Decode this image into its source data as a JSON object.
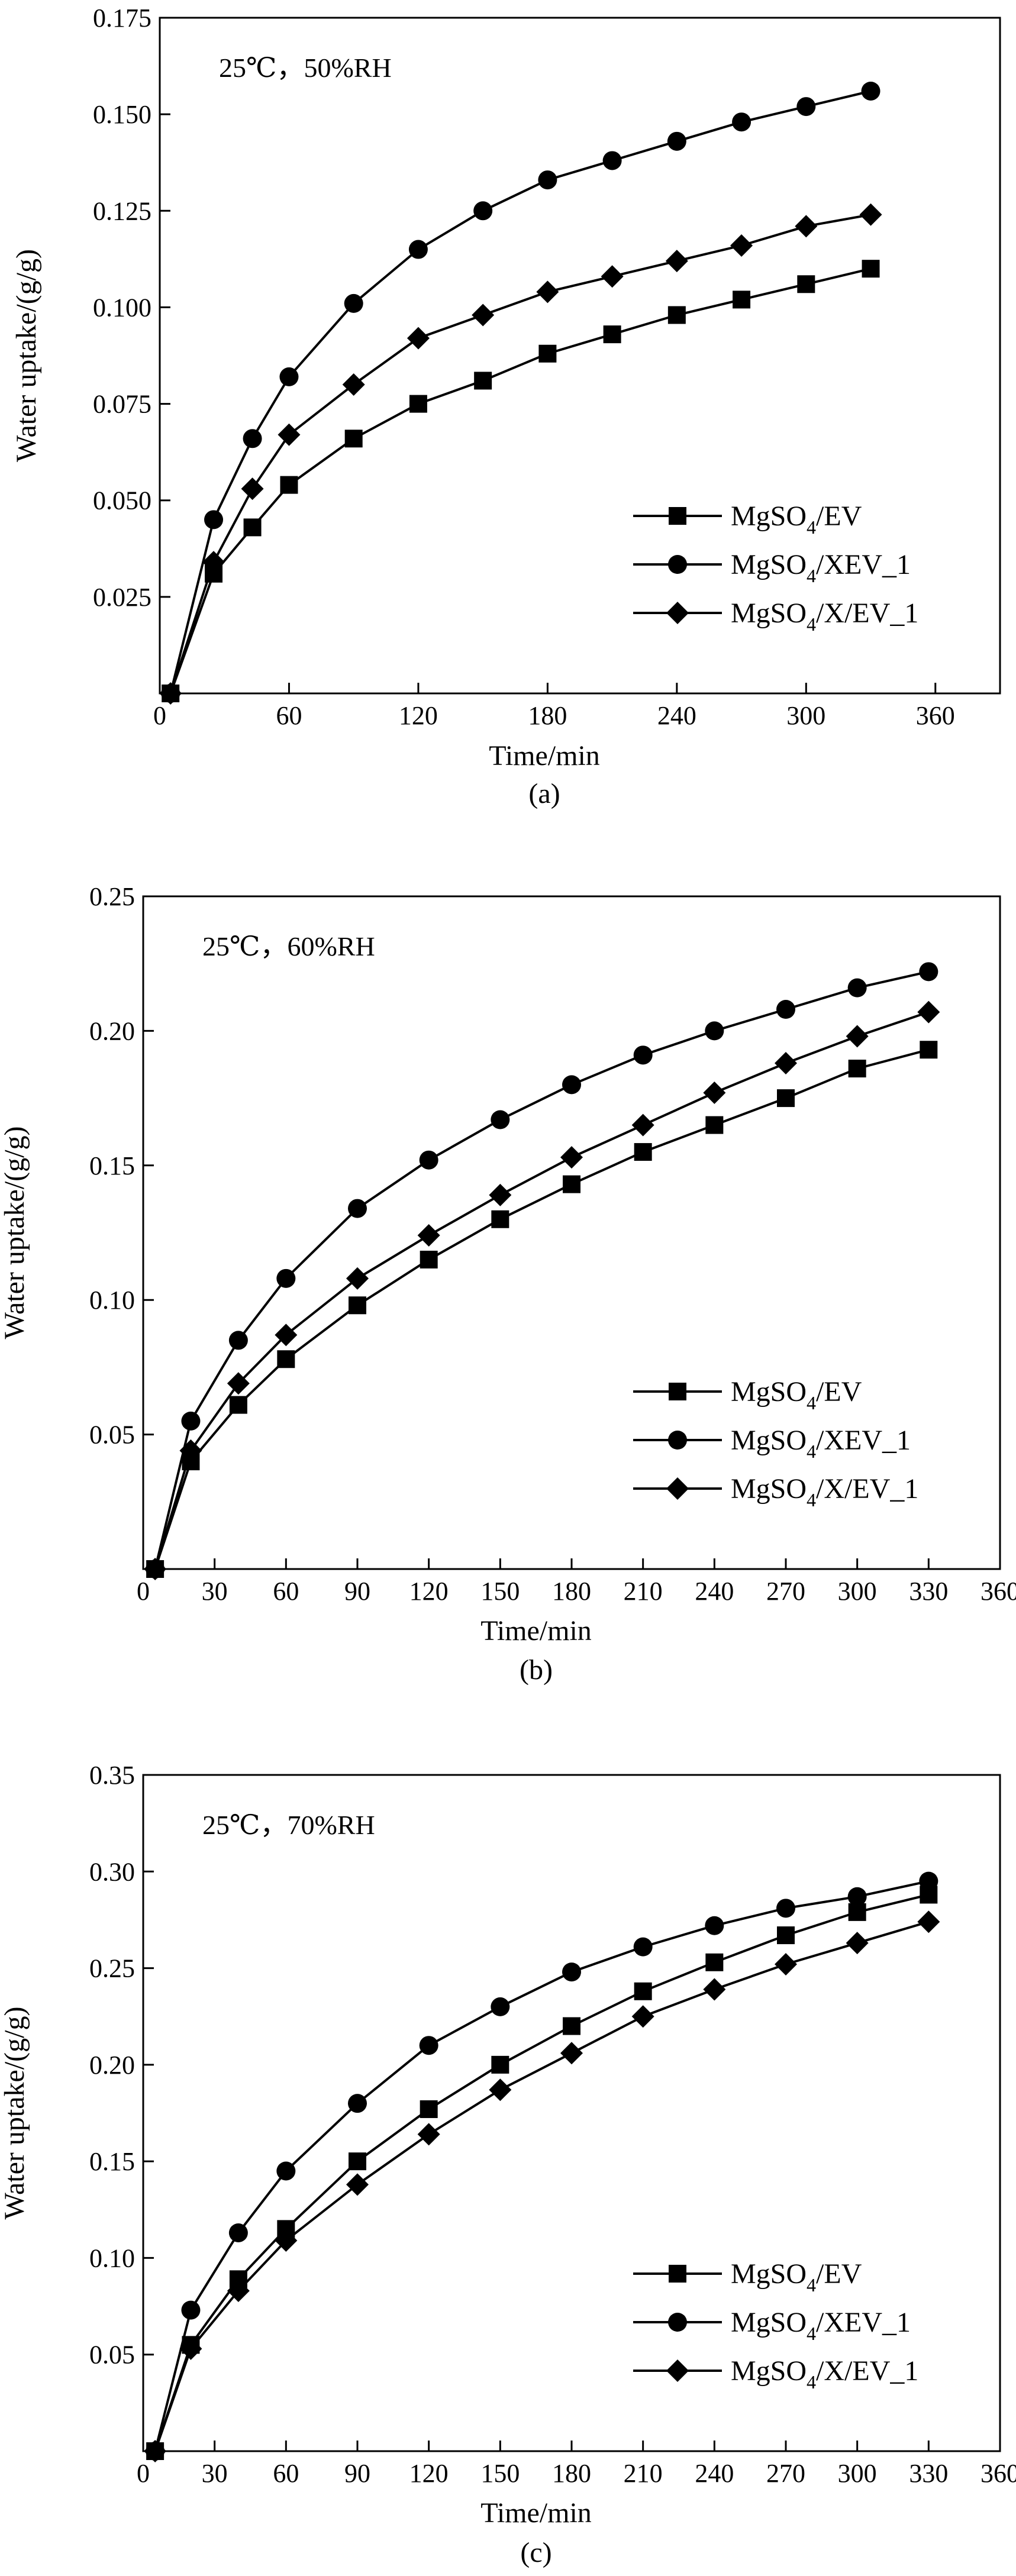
{
  "chart_data": [
    {
      "type": "line",
      "panel_label": "(a)",
      "condition": "25℃，50%RH",
      "xlabel": "Time/min",
      "ylabel": "Water uptake/(g/g)",
      "xlim": [
        0,
        390
      ],
      "ylim": [
        0,
        0.175
      ],
      "xticks": [
        0,
        60,
        120,
        180,
        240,
        300,
        360
      ],
      "xtick_labels": [
        "0",
        "60",
        "120",
        "180",
        "240",
        "300",
        "360"
      ],
      "yticks": [
        0.025,
        0.05,
        0.075,
        0.1,
        0.125,
        0.15,
        0.175
      ],
      "ytick_labels": [
        "0.025",
        "0.050",
        "0.075",
        "0.100",
        "0.125",
        "0.150",
        "0.175"
      ],
      "legend_position": "lower-right",
      "series": [
        {
          "name": "MgSO4/EV",
          "name_main": "MgSO",
          "name_sub": "4",
          "name_tail": "/EV",
          "marker": "square",
          "x": [
            5,
            25,
            43,
            60,
            90,
            120,
            150,
            180,
            210,
            240,
            270,
            300,
            330
          ],
          "y": [
            0.0,
            0.031,
            0.043,
            0.054,
            0.066,
            0.075,
            0.081,
            0.088,
            0.093,
            0.098,
            0.102,
            0.106,
            0.11
          ]
        },
        {
          "name": "MgSO4/XEV_1",
          "name_main": "MgSO",
          "name_sub": "4",
          "name_tail": "/XEV_1",
          "marker": "circle",
          "x": [
            5,
            25,
            43,
            60,
            90,
            120,
            150,
            180,
            210,
            240,
            270,
            300,
            330
          ],
          "y": [
            0.0,
            0.045,
            0.066,
            0.082,
            0.101,
            0.115,
            0.125,
            0.133,
            0.138,
            0.143,
            0.148,
            0.152,
            0.156
          ]
        },
        {
          "name": "MgSO4/X/EV_1",
          "name_main": "MgSO",
          "name_sub": "4",
          "name_tail": "/X/EV_1",
          "marker": "diamond",
          "x": [
            5,
            25,
            43,
            60,
            90,
            120,
            150,
            180,
            210,
            240,
            270,
            300,
            330
          ],
          "y": [
            0.0,
            0.034,
            0.053,
            0.067,
            0.08,
            0.092,
            0.098,
            0.104,
            0.108,
            0.112,
            0.116,
            0.121,
            0.124
          ]
        }
      ]
    },
    {
      "type": "line",
      "panel_label": "(b)",
      "condition": "25℃，60%RH",
      "xlabel": "Time/min",
      "ylabel": "Water uptake/(g/g)",
      "xlim": [
        0,
        360
      ],
      "ylim": [
        0,
        0.25
      ],
      "xticks": [
        0,
        30,
        60,
        90,
        120,
        150,
        180,
        210,
        240,
        270,
        300,
        330,
        360
      ],
      "xtick_labels": [
        "0",
        "30",
        "60",
        "90",
        "120",
        "150",
        "180",
        "210",
        "240",
        "270",
        "300",
        "330",
        "360"
      ],
      "yticks": [
        0.05,
        0.1,
        0.15,
        0.2,
        0.25
      ],
      "ytick_labels": [
        "0.05",
        "0.10",
        "0.15",
        "0.20",
        "0.25"
      ],
      "legend_position": "lower-right",
      "series": [
        {
          "name": "MgSO4/EV",
          "name_main": "MgSO",
          "name_sub": "4",
          "name_tail": "/EV",
          "marker": "square",
          "x": [
            5,
            20,
            40,
            60,
            90,
            120,
            150,
            180,
            210,
            240,
            270,
            300,
            330
          ],
          "y": [
            0.0,
            0.04,
            0.061,
            0.078,
            0.098,
            0.115,
            0.13,
            0.143,
            0.155,
            0.165,
            0.175,
            0.186,
            0.193
          ]
        },
        {
          "name": "MgSO4/XEV_1",
          "name_main": "MgSO",
          "name_sub": "4",
          "name_tail": "/XEV_1",
          "marker": "circle",
          "x": [
            5,
            20,
            40,
            60,
            90,
            120,
            150,
            180,
            210,
            240,
            270,
            300,
            330
          ],
          "y": [
            0.0,
            0.055,
            0.085,
            0.108,
            0.134,
            0.152,
            0.167,
            0.18,
            0.191,
            0.2,
            0.208,
            0.216,
            0.222
          ]
        },
        {
          "name": "MgSO4/X/EV_1",
          "name_main": "MgSO",
          "name_sub": "4",
          "name_tail": "/X/EV_1",
          "marker": "diamond",
          "x": [
            5,
            20,
            40,
            60,
            90,
            120,
            150,
            180,
            210,
            240,
            270,
            300,
            330
          ],
          "y": [
            0.0,
            0.044,
            0.069,
            0.087,
            0.108,
            0.124,
            0.139,
            0.153,
            0.165,
            0.177,
            0.188,
            0.198,
            0.207
          ]
        }
      ]
    },
    {
      "type": "line",
      "panel_label": "(c)",
      "condition": "25℃，70%RH",
      "xlabel": "Time/min",
      "ylabel": "Water uptake/(g/g)",
      "xlim": [
        0,
        360
      ],
      "ylim": [
        0,
        0.35
      ],
      "xticks": [
        0,
        30,
        60,
        90,
        120,
        150,
        180,
        210,
        240,
        270,
        300,
        330,
        360
      ],
      "xtick_labels": [
        "0",
        "30",
        "60",
        "90",
        "120",
        "150",
        "180",
        "210",
        "240",
        "270",
        "300",
        "330",
        "360"
      ],
      "yticks": [
        0.05,
        0.1,
        0.15,
        0.2,
        0.25,
        0.3,
        0.35
      ],
      "ytick_labels": [
        "0.05",
        "0.10",
        "0.15",
        "0.20",
        "0.25",
        "0.30",
        "0.35"
      ],
      "legend_position": "lower-right",
      "series": [
        {
          "name": "MgSO4/EV",
          "name_main": "MgSO",
          "name_sub": "4",
          "name_tail": "/EV",
          "marker": "square",
          "x": [
            5,
            20,
            40,
            60,
            90,
            120,
            150,
            180,
            210,
            240,
            270,
            300,
            330
          ],
          "y": [
            0.0,
            0.055,
            0.089,
            0.115,
            0.15,
            0.177,
            0.2,
            0.22,
            0.238,
            0.253,
            0.267,
            0.279,
            0.288
          ]
        },
        {
          "name": "MgSO4/XEV_1",
          "name_main": "MgSO",
          "name_sub": "4",
          "name_tail": "/XEV_1",
          "marker": "circle",
          "x": [
            5,
            20,
            40,
            60,
            90,
            120,
            150,
            180,
            210,
            240,
            270,
            300,
            330
          ],
          "y": [
            0.0,
            0.073,
            0.113,
            0.145,
            0.18,
            0.21,
            0.23,
            0.248,
            0.261,
            0.272,
            0.281,
            0.287,
            0.295
          ]
        },
        {
          "name": "MgSO4/X/EV_1",
          "name_main": "MgSO",
          "name_sub": "4",
          "name_tail": "/X/EV_1",
          "marker": "diamond",
          "x": [
            5,
            20,
            40,
            60,
            90,
            120,
            150,
            180,
            210,
            240,
            270,
            300,
            330
          ],
          "y": [
            0.0,
            0.053,
            0.083,
            0.109,
            0.138,
            0.164,
            0.187,
            0.206,
            0.225,
            0.239,
            0.252,
            0.263,
            0.274
          ]
        }
      ]
    }
  ]
}
